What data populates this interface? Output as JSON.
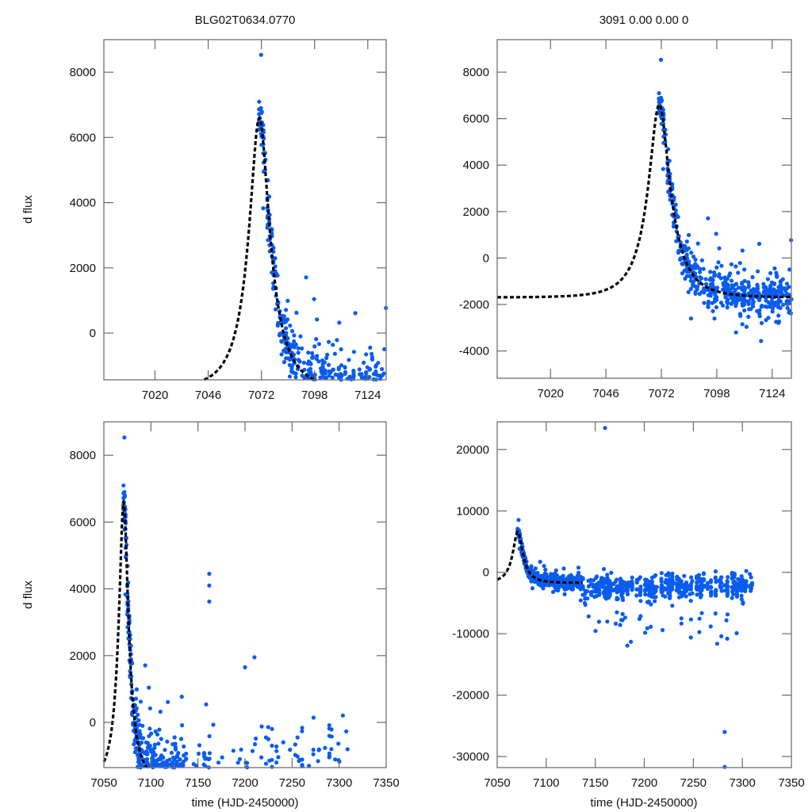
{
  "chart_data": [
    {
      "panel": "top-left",
      "type": "scatter",
      "title": "BLG02T0634.0770",
      "xlabel": "",
      "ylabel": "d flux",
      "xlim": [
        6995,
        7133
      ],
      "ylim": [
        -1434,
        9000
      ],
      "xticks": [
        7020,
        7046,
        7072,
        7098,
        7124
      ],
      "yticks": [
        0,
        2000,
        4000,
        6000,
        8000
      ],
      "series": [
        {
          "name": "observations",
          "style": "points",
          "color": "#0a5cf0",
          "note": "dense columns of points at t≈7071–7133 following model decay, peak points up to ~8500"
        },
        {
          "name": "model",
          "style": "dashed-line",
          "color": "#000000",
          "peak_t": 7071,
          "peak_flux": 6600,
          "baseline": -1700,
          "tE": 14
        }
      ]
    },
    {
      "panel": "top-right",
      "type": "scatter",
      "title": "3091  0.00  0.00  0",
      "xlabel": "",
      "ylabel": "",
      "xlim": [
        6995,
        7133
      ],
      "ylim": [
        -5175,
        9400
      ],
      "xticks": [
        7020,
        7046,
        7072,
        7098,
        7124
      ],
      "yticks": [
        -4000,
        -2000,
        0,
        2000,
        4000,
        6000,
        8000
      ],
      "series": [
        {
          "name": "observations",
          "style": "points",
          "color": "#0a5cf0"
        },
        {
          "name": "model",
          "style": "dashed-line",
          "color": "#000000",
          "peak_t": 7071,
          "peak_flux": 6600,
          "baseline": -1700,
          "tE": 14
        }
      ]
    },
    {
      "panel": "bottom-left",
      "type": "scatter",
      "title": "",
      "xlabel": "time (HJD-2450000)",
      "ylabel": "d flux",
      "xlim": [
        7050,
        7350
      ],
      "ylim": [
        -1353,
        9000
      ],
      "xticks": [
        7050,
        7100,
        7150,
        7200,
        7250,
        7300,
        7350
      ],
      "yticks": [
        0,
        2000,
        4000,
        6000,
        8000
      ],
      "series": [
        {
          "name": "observations",
          "style": "points",
          "color": "#0a5cf0",
          "outliers": [
            [
              7162,
              4450
            ],
            [
              7162,
              4100
            ],
            [
              7162,
              3620
            ],
            [
              7210,
              1950
            ],
            [
              7200,
              1650
            ]
          ]
        },
        {
          "name": "model",
          "style": "dashed-line",
          "color": "#000000",
          "peak_t": 7071,
          "peak_flux": 6600,
          "baseline": -1700,
          "tE": 14,
          "t_end": 7135
        }
      ]
    },
    {
      "panel": "bottom-right",
      "type": "scatter",
      "title": "",
      "xlabel": "time (HJD-2450000)",
      "ylabel": "",
      "xlim": [
        7050,
        7350
      ],
      "ylim": [
        -31800,
        24500
      ],
      "xticks": [
        7050,
        7100,
        7150,
        7200,
        7250,
        7300,
        7350
      ],
      "yticks": [
        -30000,
        -20000,
        -10000,
        0,
        10000,
        20000
      ],
      "series": [
        {
          "name": "observations",
          "style": "points",
          "color": "#0a5cf0",
          "outliers": [
            [
              7160,
              23500
            ],
            [
              7282,
              -26000
            ],
            [
              7282,
              -31700
            ]
          ]
        },
        {
          "name": "model",
          "style": "dashed-line",
          "color": "#000000",
          "peak_t": 7071,
          "peak_flux": 6600,
          "baseline": -1700,
          "tE": 14,
          "t_end": 7137
        }
      ]
    }
  ]
}
